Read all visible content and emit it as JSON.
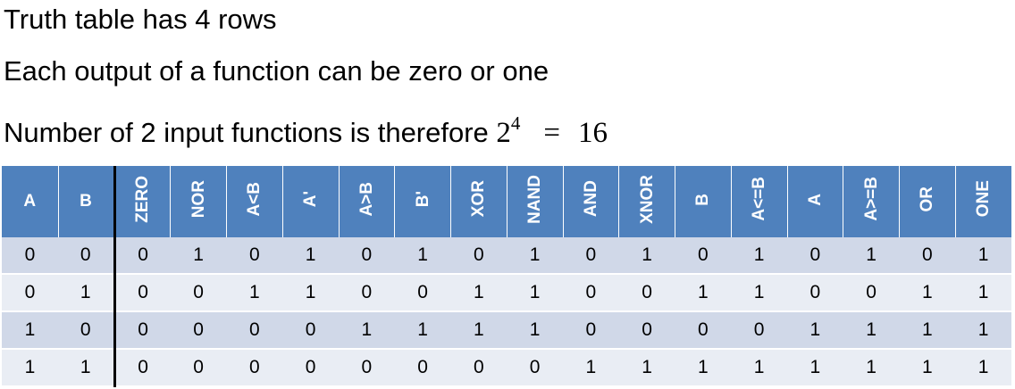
{
  "text_lines": {
    "line1": "Truth table has 4 rows",
    "line2": "Each output of a function can be zero or one",
    "line3_prefix": "Number of 2 input functions is therefore ",
    "line3_base": "2",
    "line3_exp": "4",
    "line3_eq": "=",
    "line3_result": "16"
  },
  "table": {
    "input_headers": [
      "A",
      "B"
    ],
    "function_headers": [
      "ZERO",
      "NOR",
      "A<B",
      "A'",
      "A>B",
      "B'",
      "XOR",
      "NAND",
      "AND",
      "XNOR",
      "B",
      "A<=B",
      "A",
      "A>=B",
      "OR",
      "ONE"
    ],
    "rows": [
      [
        "0",
        "0",
        "0",
        "1",
        "0",
        "1",
        "0",
        "1",
        "0",
        "1",
        "0",
        "1",
        "0",
        "1",
        "0",
        "1",
        "0",
        "1"
      ],
      [
        "0",
        "1",
        "0",
        "0",
        "1",
        "1",
        "0",
        "0",
        "1",
        "1",
        "0",
        "0",
        "1",
        "1",
        "0",
        "0",
        "1",
        "1"
      ],
      [
        "1",
        "0",
        "0",
        "0",
        "0",
        "0",
        "1",
        "1",
        "1",
        "1",
        "0",
        "0",
        "0",
        "0",
        "1",
        "1",
        "1",
        "1"
      ],
      [
        "1",
        "1",
        "0",
        "0",
        "0",
        "0",
        "0",
        "0",
        "0",
        "0",
        "1",
        "1",
        "1",
        "1",
        "1",
        "1",
        "1",
        "1"
      ]
    ]
  },
  "colors": {
    "header_bg": "#4f81bd",
    "row_odd_bg": "#d0d8e8",
    "row_even_bg": "#e9edf4",
    "separator": "#000000"
  }
}
